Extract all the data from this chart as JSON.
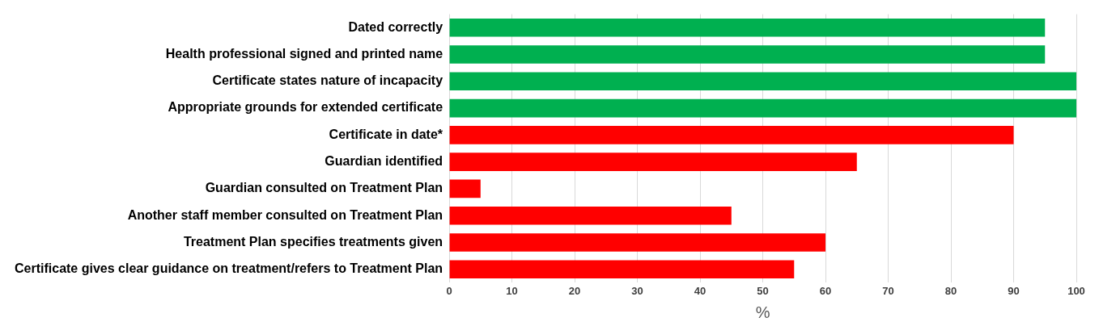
{
  "chart_data": {
    "type": "bar",
    "orientation": "horizontal",
    "xlabel": "%",
    "categories": [
      "Dated correctly",
      "Health professional signed and printed name",
      "Certificate states nature of incapacity",
      "Appropriate grounds for extended certificate",
      "Certificate in date*",
      "Guardian identified",
      "Guardian consulted on Treatment Plan",
      "Another staff member consulted on Treatment Plan",
      "Treatment Plan specifies treatments given",
      "Certificate gives clear guidance on treatment/refers to Treatment Plan"
    ],
    "values": [
      95,
      95,
      100,
      100,
      90,
      65,
      5,
      45,
      60,
      55
    ],
    "colors": [
      "#00b050",
      "#00b050",
      "#00b050",
      "#00b050",
      "#ff0000",
      "#ff0000",
      "#ff0000",
      "#ff0000",
      "#ff0000",
      "#ff0000"
    ],
    "xlim": [
      0,
      100
    ],
    "xticks": [
      0,
      10,
      20,
      30,
      40,
      50,
      60,
      70,
      80,
      90,
      100
    ],
    "grid": "x",
    "legend": false
  }
}
